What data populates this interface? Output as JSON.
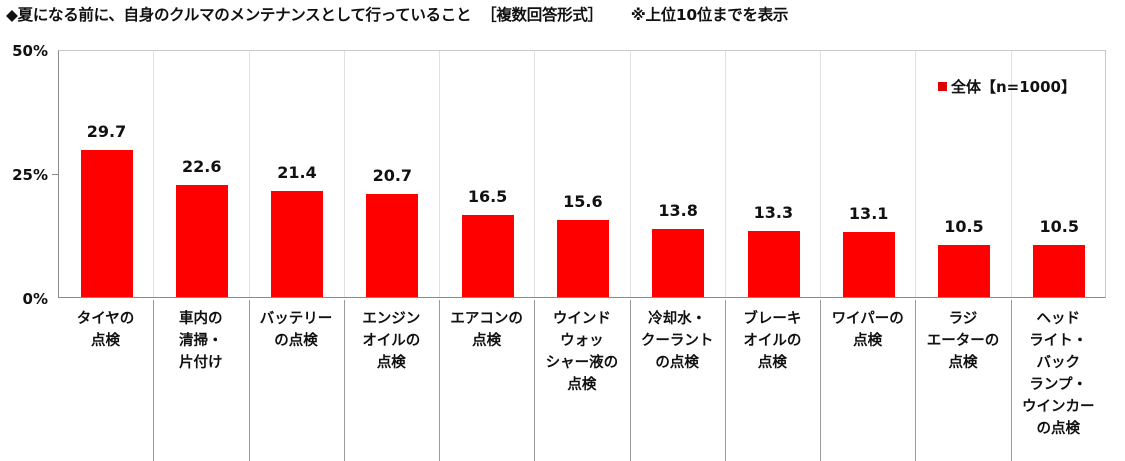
{
  "title": {
    "main": "◆夏になる前に、自身のクルマのメンテナンスとして行っていること",
    "format": "［複数回答形式］",
    "note": "※上位10位までを表示"
  },
  "legend": {
    "label": "全体【n=1000】",
    "color": "#e00000"
  },
  "y_axis": {
    "ticks": [
      "50%",
      "25%",
      "0%"
    ]
  },
  "chart_data": {
    "type": "bar",
    "title": "◆夏になる前に、自身のクルマのメンテナンスとして行っていること［複数回答形式］※上位10位までを表示",
    "xlabel": "",
    "ylabel": "",
    "ylim": [
      0,
      50
    ],
    "yticks": [
      0,
      25,
      50
    ],
    "grid": "vertical separators",
    "legend_position": "top-right inside plot",
    "categories": [
      "タイヤの点検",
      "車内の清掃・片付け",
      "バッテリーの点検",
      "エンジンオイルの点検",
      "エアコンの点検",
      "ウインドウォッシャー液の点検",
      "冷却水・クーラントの点検",
      "ブレーキオイルの点検",
      "ワイパーの点検",
      "ラジエーターの点検",
      "ヘッドライト・バックランプ・ウインカーの点検"
    ],
    "series": [
      {
        "name": "全体【n=1000】",
        "color": "#ff0000",
        "values": [
          29.7,
          22.6,
          21.4,
          20.7,
          16.5,
          15.6,
          13.8,
          13.3,
          13.1,
          10.5,
          10.5
        ]
      }
    ]
  },
  "bars": [
    {
      "value": "29.7",
      "label_lines": [
        "タイヤの",
        "点検"
      ]
    },
    {
      "value": "22.6",
      "label_lines": [
        "車内の",
        "清掃・",
        "片付け"
      ]
    },
    {
      "value": "21.4",
      "label_lines": [
        "バッテリー",
        "の点検"
      ]
    },
    {
      "value": "20.7",
      "label_lines": [
        "エンジン",
        "オイルの",
        "点検"
      ]
    },
    {
      "value": "16.5",
      "label_lines": [
        "エアコンの",
        "点検"
      ]
    },
    {
      "value": "15.6",
      "label_lines": [
        "ウインド",
        "ウォッ",
        "シャー液の",
        "点検"
      ]
    },
    {
      "value": "13.8",
      "label_lines": [
        "冷却水・",
        "クーラント",
        "の点検"
      ]
    },
    {
      "value": "13.3",
      "label_lines": [
        "ブレーキ",
        "オイルの",
        "点検"
      ]
    },
    {
      "value": "13.1",
      "label_lines": [
        "ワイパーの",
        "点検"
      ]
    },
    {
      "value": "10.5",
      "label_lines": [
        "ラジ",
        "エーターの",
        "点検"
      ]
    },
    {
      "value": "10.5",
      "label_lines": [
        "ヘッド",
        "ライト・",
        "バック",
        "ランプ・",
        "ウインカー",
        "の点検"
      ]
    }
  ]
}
